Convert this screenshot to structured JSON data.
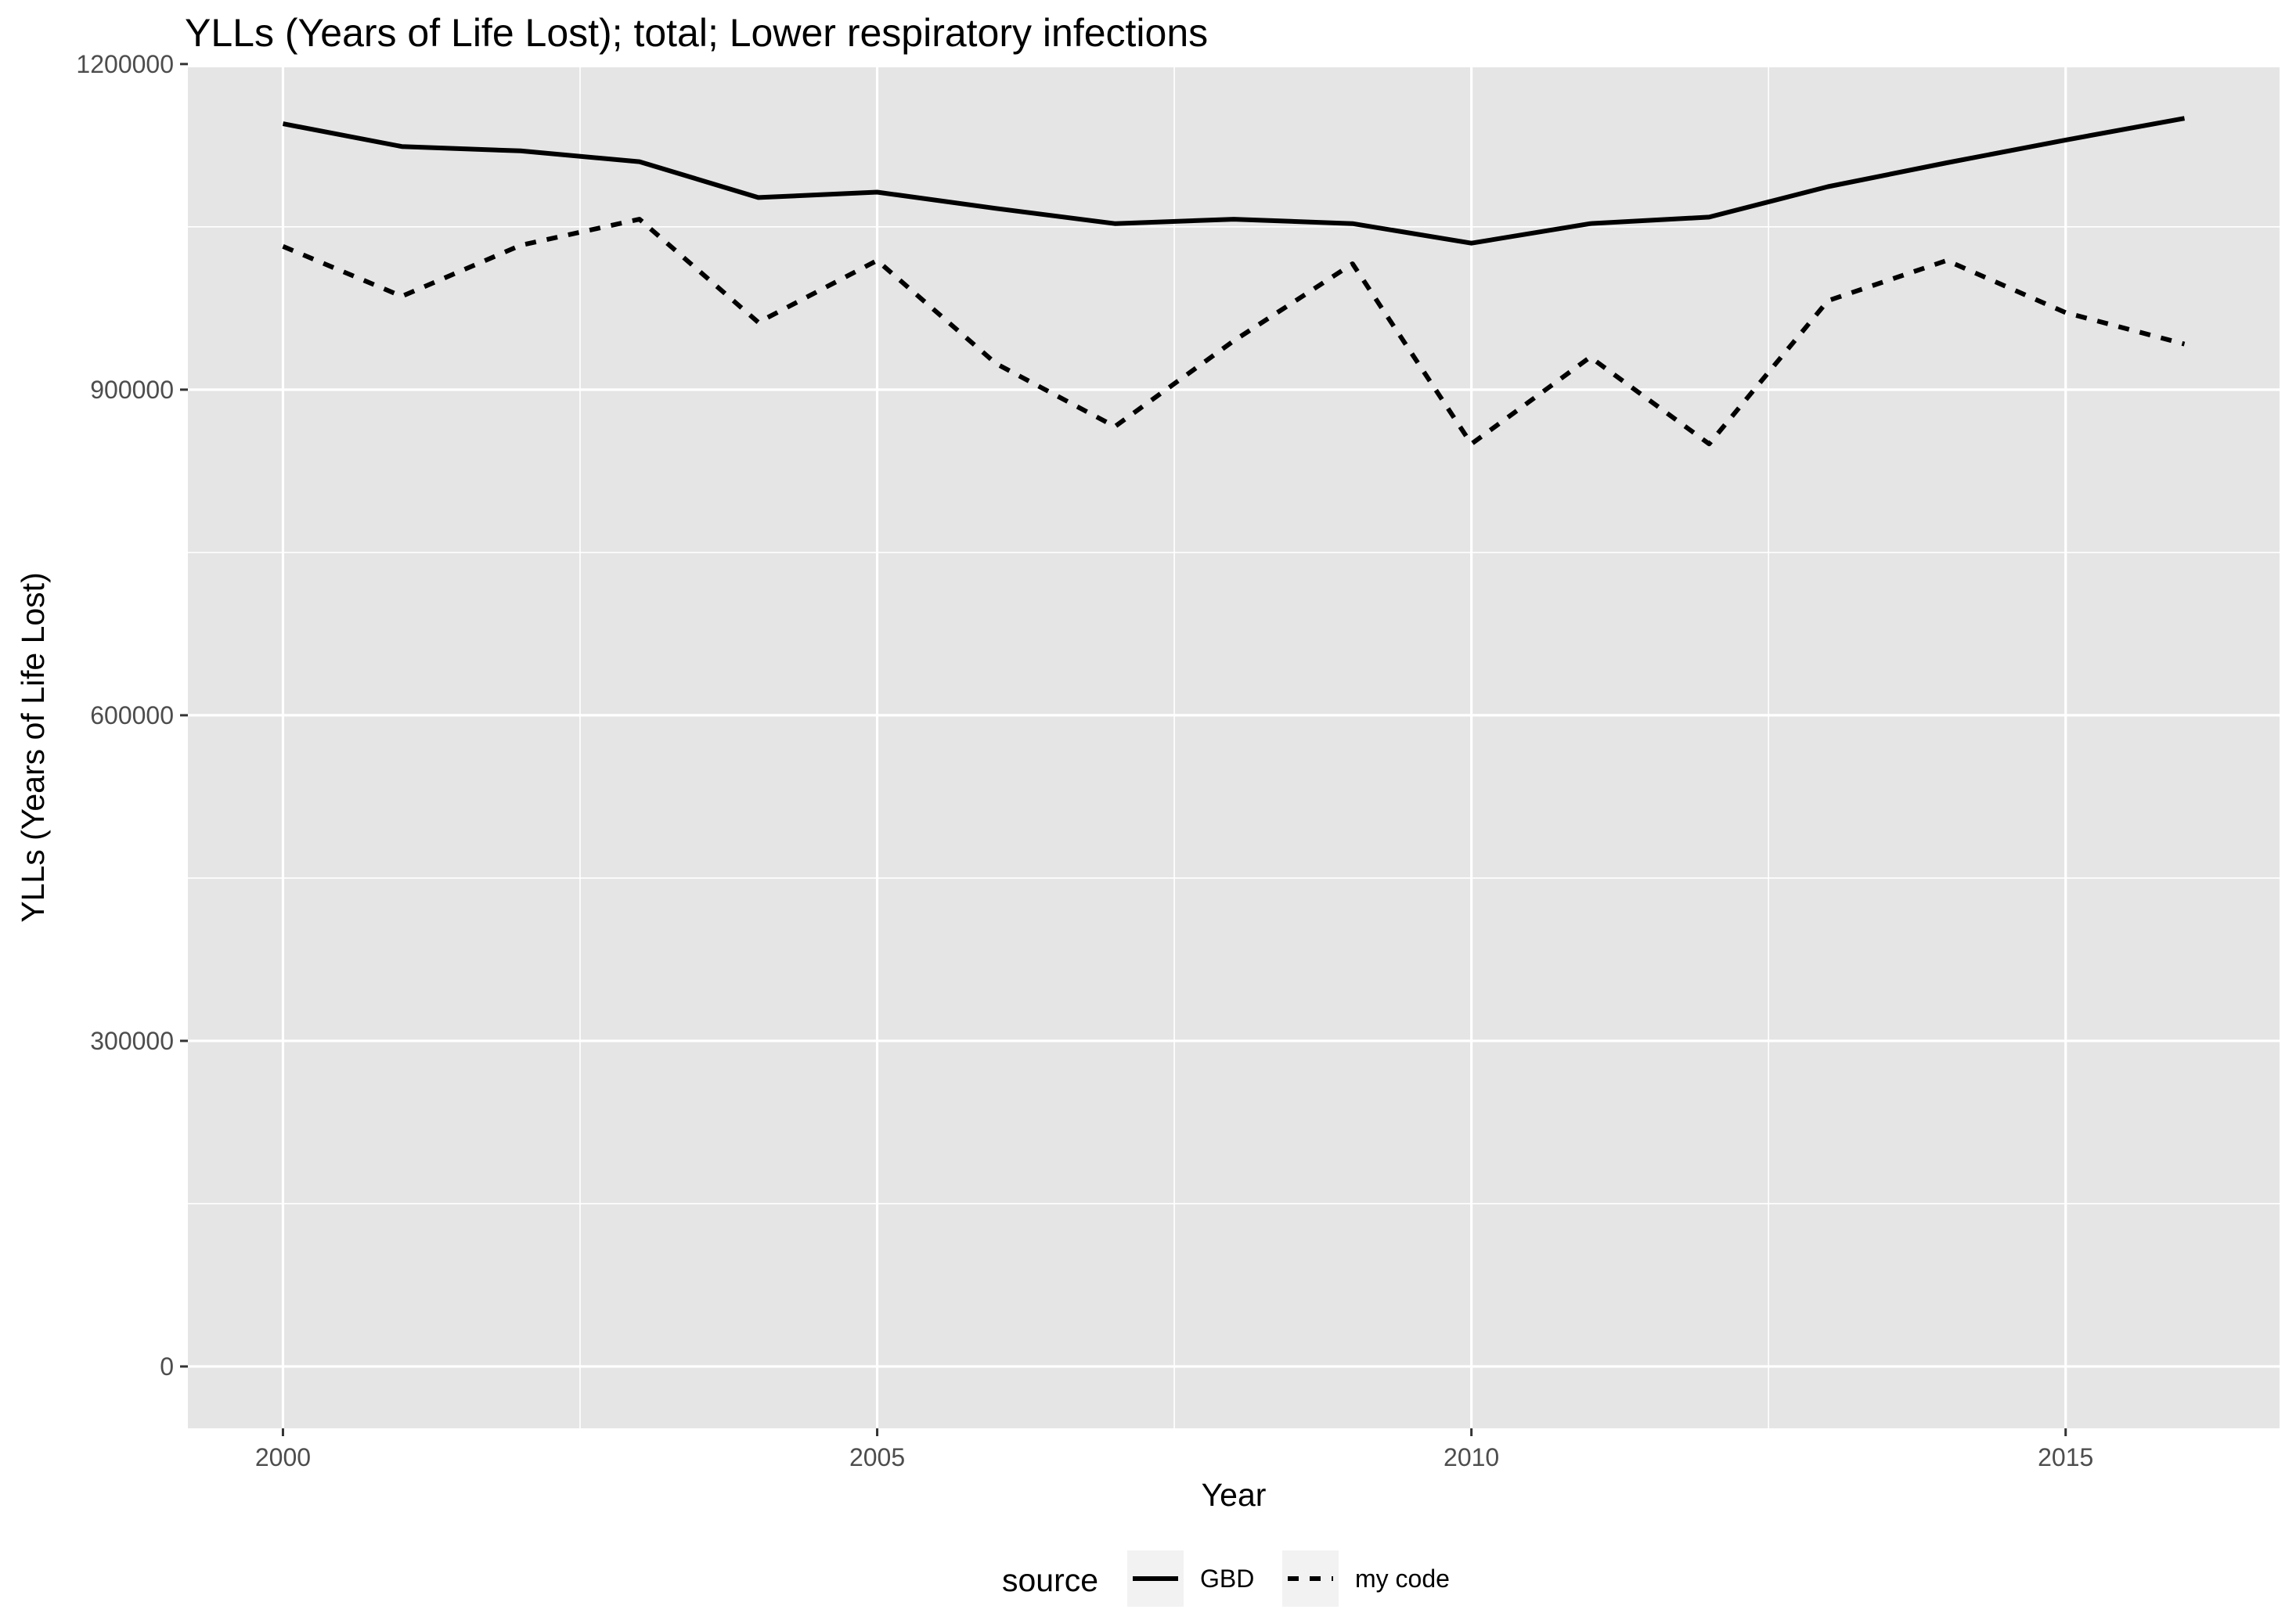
{
  "chart_data": {
    "type": "line",
    "title": "YLLs (Years of Life Lost); total; Lower respiratory infections",
    "xlabel": "Year",
    "ylabel": "YLLs (Years of Life Lost)",
    "xlim": [
      1999.2,
      2016.8
    ],
    "ylim": [
      -57000,
      1197000
    ],
    "x_major_ticks": [
      2000,
      2005,
      2010,
      2015
    ],
    "x_tick_labels": [
      "2000",
      "2005",
      "2010",
      "2015"
    ],
    "x_minor_ticks": [
      2002.5,
      2007.5,
      2012.5
    ],
    "y_major_ticks": [
      0,
      300000,
      600000,
      900000,
      1200000
    ],
    "y_tick_labels": [
      "0",
      "300000",
      "600000",
      "900000",
      "1200000"
    ],
    "y_minor_ticks": [
      150000,
      450000,
      750000,
      1050000
    ],
    "grid": true,
    "legend_position": "bottom",
    "legend_title": "source",
    "x": [
      2000,
      2001,
      2002,
      2003,
      2004,
      2005,
      2006,
      2007,
      2008,
      2009,
      2010,
      2011,
      2012,
      2013,
      2014,
      2015,
      2016
    ],
    "series": [
      {
        "name": "GBD",
        "line_style": "solid",
        "color": "#000000",
        "values": [
          1145000,
          1124000,
          1120000,
          1110000,
          1077000,
          1082000,
          1067000,
          1053000,
          1057000,
          1053000,
          1035000,
          1053000,
          1059000,
          1087000,
          1109000,
          1130000,
          1150000
        ]
      },
      {
        "name": "my code",
        "line_style": "dashed",
        "color": "#000000",
        "values": [
          1032000,
          986000,
          1033000,
          1057000,
          962000,
          1019000,
          924000,
          866000,
          945000,
          1016000,
          850000,
          930000,
          850000,
          982000,
          1019000,
          971000,
          942000
        ]
      }
    ],
    "colors": {
      "panel_background": "#e5e5e5",
      "grid_line": "#ffffff",
      "tick_text": "#4d4d4d",
      "tick_mark": "#333333",
      "legend_key_background": "#f2f2f2"
    }
  }
}
